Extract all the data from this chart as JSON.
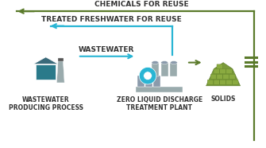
{
  "bg_color": "#ffffff",
  "green_color": "#5a7a2a",
  "blue_color": "#29b5d4",
  "gray_icon": "#9aabad",
  "teal_icon": "#2a7a8a",
  "olive_green": "#7a9a3a",
  "label_color": "#333333",
  "chemicals_label": "CHEMICALS FOR REUSE",
  "freshwater_label": "TREATED FRESHWATER FOR REUSE",
  "wastewater_label": "WASTEWATER",
  "process_label": "WASTEWATER\nPRODUCING PROCESS",
  "plant_label": "ZERO LIQUID DISCHARGE\nTREATMENT PLANT",
  "solids_label": "SOLIDS",
  "font_size_main": 6.5,
  "font_size_small": 5.5
}
